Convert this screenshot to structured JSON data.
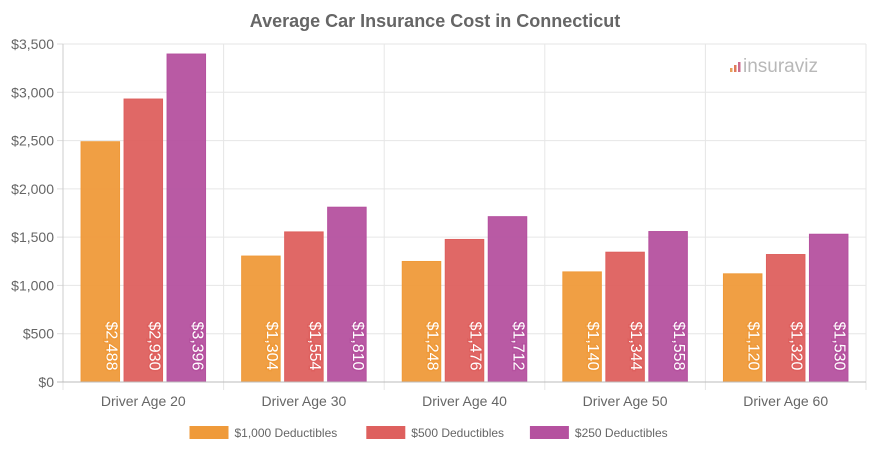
{
  "chart_data": {
    "type": "bar",
    "title": "Average Car Insurance Cost in Connecticut",
    "categories": [
      "Driver Age 20",
      "Driver Age 30",
      "Driver Age 40",
      "Driver Age 50",
      "Driver Age 60"
    ],
    "series": [
      {
        "name": "$1,000 Deductibles",
        "color": "#ef9a3a",
        "values": [
          2488,
          1304,
          1248,
          1140,
          1120
        ],
        "labels": [
          "$2,488",
          "$1,304",
          "$1,248",
          "$1,140",
          "$1,120"
        ]
      },
      {
        "name": "$500 Deductibles",
        "color": "#de605e",
        "values": [
          2930,
          1554,
          1476,
          1344,
          1320
        ],
        "labels": [
          "$2,930",
          "$1,554",
          "$1,476",
          "$1,344",
          "$1,320"
        ]
      },
      {
        "name": "$250 Deductibles",
        "color": "#b5519f",
        "values": [
          3396,
          1810,
          1712,
          1558,
          1530
        ],
        "labels": [
          "$3,396",
          "$1,810",
          "$1,712",
          "$1,558",
          "$1,530"
        ]
      }
    ],
    "y_ticks": [
      "$0",
      "$500",
      "$1,000",
      "$1,500",
      "$2,000",
      "$2,500",
      "$3,000",
      "$3,500"
    ],
    "ylim": [
      0,
      3500
    ],
    "grid": true,
    "legend_position": "bottom"
  },
  "watermark": {
    "text": "insuraviz",
    "name": "insuraviz-logo"
  }
}
